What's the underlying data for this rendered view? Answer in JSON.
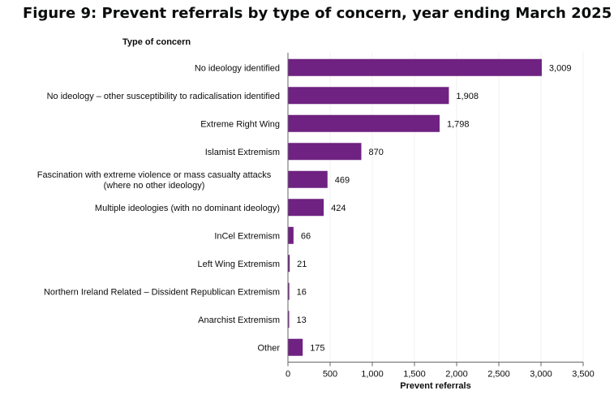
{
  "title": "Figure 9: Prevent referrals by type of concern, year ending March 2025",
  "chart_data": {
    "type": "bar",
    "orientation": "horizontal",
    "title": "Figure 9: Prevent referrals by type of concern, year ending March 2025",
    "ylabel": "Type of concern",
    "xlabel": "Prevent referrals",
    "xlim": [
      0,
      3500
    ],
    "xticks": [
      0,
      500,
      1000,
      1500,
      2000,
      2500,
      3000,
      3500
    ],
    "xtick_labels": [
      "0",
      "500",
      "1,000",
      "1,500",
      "2,000",
      "2,500",
      "3,000",
      "3,500"
    ],
    "grid": true,
    "bar_color": "#6f2281",
    "categories": [
      [
        "No ideology identified"
      ],
      [
        "No ideology – other susceptibility to radicalisation identified"
      ],
      [
        "Extreme Right Wing"
      ],
      [
        "Islamist Extremism"
      ],
      [
        "Fascination with extreme violence or mass casualty attacks",
        "(where no other ideology)"
      ],
      [
        "Multiple ideologies (with no dominant ideology)"
      ],
      [
        "InCel Extremism"
      ],
      [
        "Left Wing Extremism"
      ],
      [
        "Northern Ireland Related – Dissident Republican Extremism"
      ],
      [
        "Anarchist Extremism"
      ],
      [
        "Other"
      ]
    ],
    "values": [
      3009,
      1908,
      1798,
      870,
      469,
      424,
      66,
      21,
      16,
      13,
      175
    ],
    "value_labels": [
      "3,009",
      "1,908",
      "1,798",
      "870",
      "469",
      "424",
      "66",
      "21",
      "16",
      "13",
      "175"
    ]
  }
}
